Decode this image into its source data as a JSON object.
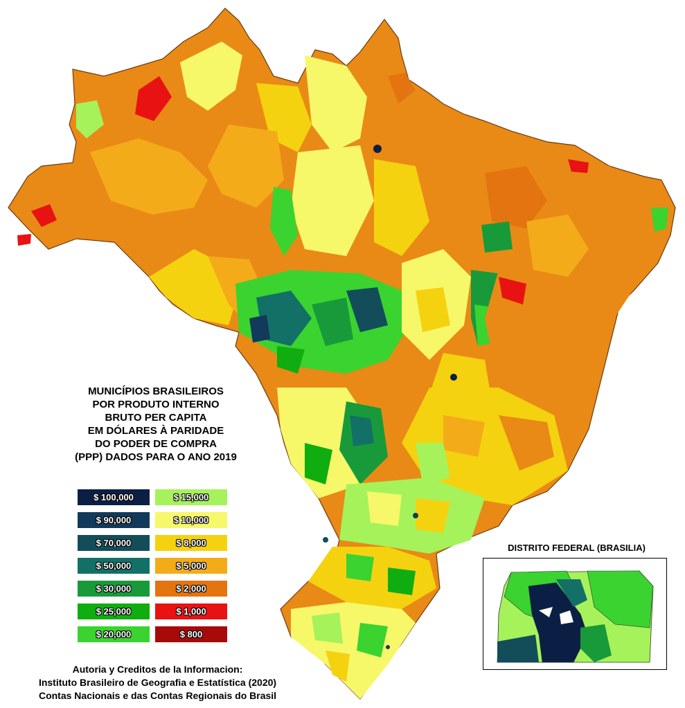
{
  "title_lines": [
    "MUNICÍPIOS BRASILEIROS",
    "POR PRODUTO INTERNO",
    "BRUTO PER CAPITA",
    "EM DÓLARES À PARIDADE",
    "DO PODER DE COMPRA",
    "(PPP) DADOS PARA O ANO 2019"
  ],
  "legend": [
    {
      "label": "$ 100,000",
      "color": "#0b1f45"
    },
    {
      "label": "$ 15,000",
      "color": "#a6f25a"
    },
    {
      "label": "$ 90,000",
      "color": "#123a5a"
    },
    {
      "label": "$ 10,000",
      "color": "#f7f76a"
    },
    {
      "label": "$ 70,000",
      "color": "#134d5a"
    },
    {
      "label": "$ 8,000",
      "color": "#f5d20f"
    },
    {
      "label": "$ 50,000",
      "color": "#137066"
    },
    {
      "label": "$ 5,000",
      "color": "#f4ab1a"
    },
    {
      "label": "$ 30,000",
      "color": "#189a3a"
    },
    {
      "label": "$ 2,000",
      "color": "#e4740f"
    },
    {
      "label": "$ 25,000",
      "color": "#10ad10"
    },
    {
      "label": "$ 1,000",
      "color": "#e81212"
    },
    {
      "label": "$ 20,000",
      "color": "#3ad330"
    },
    {
      "label": "$ 800",
      "color": "#a80a0a"
    }
  ],
  "inset_title": "DISTRITO FEDERAL (BRASILIA)",
  "credits": [
    "Autoria y Creditos de la Informacion:",
    "Instituto Brasileiro de Geografia e Estatística (2020)",
    "Contas Nacionais e das Contas Regionais do Brasil"
  ]
}
